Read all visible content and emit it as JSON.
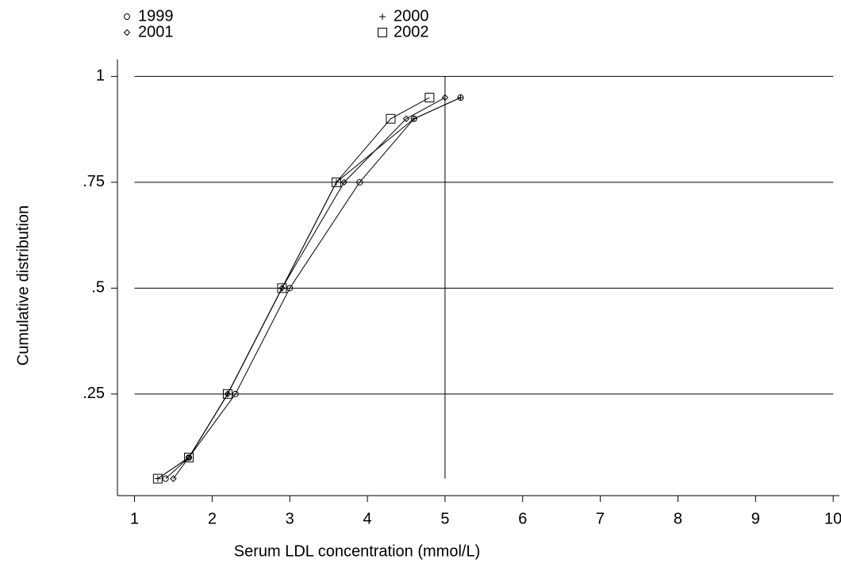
{
  "chart_data": {
    "type": "line",
    "xlabel": "Serum LDL concentration (mmol/L)",
    "ylabel": "Cumulative distribution",
    "xlim": [
      0.78,
      10.08
    ],
    "ylim": [
      0.01,
      1.04
    ],
    "xticks": [
      1,
      2,
      3,
      4,
      5,
      6,
      7,
      8,
      9,
      10
    ],
    "yticks": [
      {
        "value": 0.25,
        "label": ".25"
      },
      {
        "value": 0.5,
        "label": ".5"
      },
      {
        "value": 0.75,
        "label": ".75"
      },
      1
    ],
    "grid": true,
    "color": "#000000",
    "reference_line": {
      "x": 5,
      "y": [
        0.05,
        1
      ]
    },
    "series": [
      {
        "name": "1999",
        "marker": "circle",
        "x": [
          1.4,
          1.7,
          2.3,
          3.0,
          3.9,
          4.6,
          5.2
        ],
        "values": [
          0.05,
          0.1,
          0.25,
          0.5,
          0.75,
          0.9,
          0.95
        ]
      },
      {
        "name": "2000",
        "marker": "plus",
        "x": [
          1.3,
          1.7,
          2.2,
          2.9,
          3.6,
          4.6,
          5.2
        ],
        "values": [
          0.05,
          0.1,
          0.25,
          0.5,
          0.75,
          0.9,
          0.95
        ]
      },
      {
        "name": "2001",
        "marker": "diamond",
        "x": [
          1.5,
          1.7,
          2.2,
          2.9,
          3.7,
          4.5,
          5.0
        ],
        "values": [
          0.05,
          0.1,
          0.25,
          0.5,
          0.75,
          0.9,
          0.95
        ]
      },
      {
        "name": "2002",
        "marker": "square",
        "x": [
          1.3,
          1.7,
          2.2,
          2.9,
          3.6,
          4.3,
          4.8
        ],
        "values": [
          0.05,
          0.1,
          0.25,
          0.5,
          0.75,
          0.9,
          0.95
        ]
      }
    ]
  }
}
